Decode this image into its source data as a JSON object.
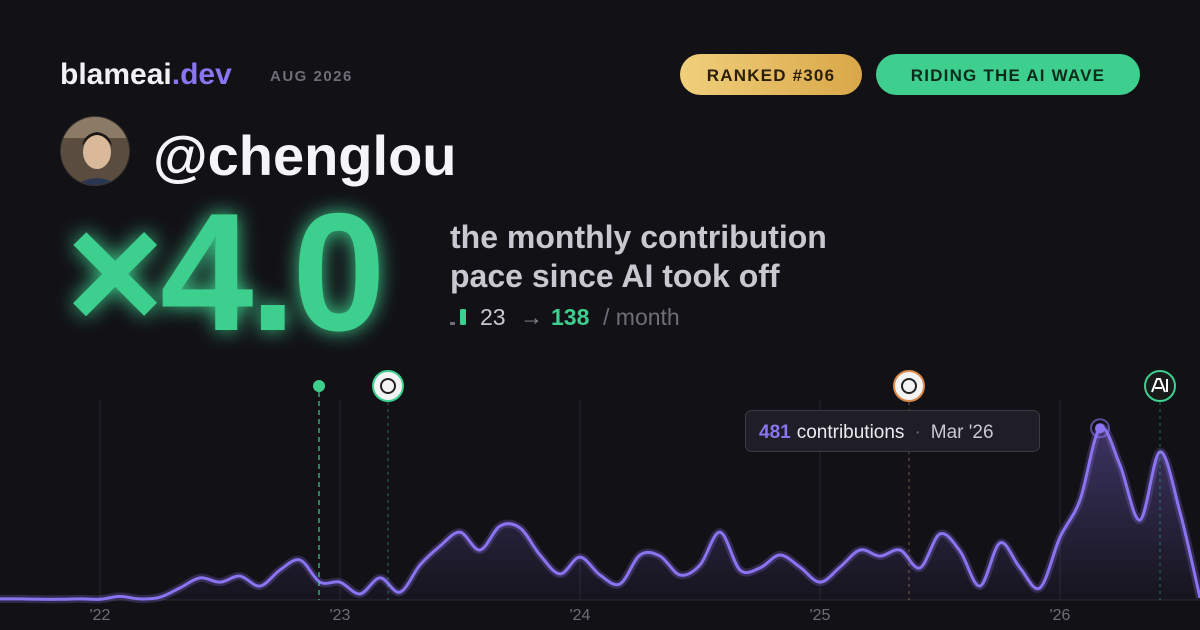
{
  "header": {
    "brand": "blameai",
    "brand_suffix": ".dev",
    "date": "AUG 2026",
    "rank_badge": "RANKED #306",
    "status_badge": "RIDING THE AI WAVE"
  },
  "profile": {
    "handle": "@chenglou"
  },
  "stat": {
    "multiplier": "×4.0",
    "caption_lines": [
      "the monthly contribution",
      "pace since AI took off"
    ],
    "before": "23",
    "arrow": "→",
    "after": "138",
    "unit": "/ month"
  },
  "chart_data": {
    "type": "area",
    "categories": [
      null,
      null,
      null,
      null,
      null,
      "'22",
      null,
      null,
      null,
      null,
      null,
      null,
      null,
      null,
      null,
      null,
      null,
      "'23",
      null,
      null,
      null,
      null,
      null,
      null,
      null,
      null,
      null,
      null,
      null,
      "'24",
      null,
      null,
      null,
      null,
      null,
      null,
      null,
      null,
      null,
      null,
      null,
      "'25",
      null,
      null,
      null,
      null,
      null,
      null,
      null,
      null,
      null,
      null,
      null,
      "'26",
      null,
      null,
      null,
      null,
      null,
      null,
      null
    ],
    "values": [
      3,
      3,
      2,
      2,
      3,
      2,
      10,
      3,
      8,
      34,
      62,
      50,
      67,
      39,
      84,
      112,
      50,
      50,
      17,
      62,
      22,
      98,
      151,
      190,
      140,
      207,
      202,
      126,
      73,
      120,
      70,
      45,
      126,
      123,
      70,
      98,
      190,
      84,
      90,
      126,
      92,
      50,
      92,
      140,
      123,
      140,
      90,
      185,
      137,
      39,
      160,
      90,
      34,
      176,
      280,
      481,
      378,
      224,
      415,
      246,
      6
    ],
    "color": "#8b74f0",
    "ylim": [
      0,
      560
    ],
    "tooltip": {
      "label": "contributions",
      "date": "Mar '26"
    }
  }
}
